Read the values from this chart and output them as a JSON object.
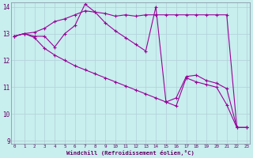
{
  "xlabel": "Windchill (Refroidissement éolien,°C)",
  "background_color": "#c8eeee",
  "grid_color": "#b0d0d8",
  "line_color": "#990099",
  "x_min": 0,
  "x_max": 23,
  "y_min": 9,
  "y_max": 14,
  "x_ticks": [
    0,
    1,
    2,
    3,
    4,
    5,
    6,
    7,
    8,
    9,
    10,
    11,
    12,
    13,
    14,
    15,
    16,
    17,
    18,
    19,
    20,
    21,
    22,
    23
  ],
  "y_ticks": [
    9,
    10,
    11,
    12,
    13,
    14
  ],
  "series1": [
    [
      0,
      12.9
    ],
    [
      1,
      13.0
    ],
    [
      2,
      13.05
    ],
    [
      3,
      13.2
    ],
    [
      4,
      13.45
    ],
    [
      5,
      13.55
    ],
    [
      6,
      13.7
    ],
    [
      7,
      13.85
    ],
    [
      8,
      13.8
    ],
    [
      9,
      13.75
    ],
    [
      10,
      13.65
    ],
    [
      11,
      13.7
    ],
    [
      12,
      13.65
    ],
    [
      13,
      13.7
    ],
    [
      14,
      13.7
    ],
    [
      15,
      13.7
    ],
    [
      16,
      13.7
    ],
    [
      17,
      13.7
    ],
    [
      18,
      13.7
    ],
    [
      19,
      13.7
    ],
    [
      20,
      13.7
    ],
    [
      21,
      13.7
    ],
    [
      22,
      9.5
    ],
    [
      23,
      9.5
    ]
  ],
  "series2": [
    [
      0,
      12.9
    ],
    [
      1,
      13.0
    ],
    [
      2,
      12.9
    ],
    [
      3,
      12.9
    ],
    [
      4,
      12.5
    ],
    [
      5,
      13.0
    ],
    [
      6,
      13.3
    ],
    [
      7,
      14.1
    ],
    [
      8,
      13.8
    ],
    [
      9,
      13.4
    ],
    [
      10,
      13.1
    ],
    [
      11,
      12.85
    ],
    [
      12,
      12.6
    ],
    [
      13,
      12.35
    ],
    [
      14,
      14.0
    ],
    [
      15,
      10.45
    ],
    [
      16,
      10.6
    ],
    [
      17,
      11.4
    ],
    [
      18,
      11.45
    ],
    [
      19,
      11.25
    ],
    [
      20,
      11.15
    ],
    [
      21,
      10.95
    ],
    [
      22,
      9.5
    ],
    [
      23,
      9.5
    ]
  ],
  "series3": [
    [
      0,
      12.9
    ],
    [
      1,
      13.0
    ],
    [
      2,
      12.85
    ],
    [
      3,
      12.45
    ],
    [
      4,
      12.2
    ],
    [
      5,
      12.0
    ],
    [
      6,
      11.8
    ],
    [
      7,
      11.65
    ],
    [
      8,
      11.5
    ],
    [
      9,
      11.35
    ],
    [
      10,
      11.2
    ],
    [
      11,
      11.05
    ],
    [
      12,
      10.9
    ],
    [
      13,
      10.75
    ],
    [
      14,
      10.6
    ],
    [
      15,
      10.45
    ],
    [
      16,
      10.3
    ],
    [
      17,
      11.35
    ],
    [
      18,
      11.2
    ],
    [
      19,
      11.1
    ],
    [
      20,
      11.0
    ],
    [
      21,
      10.35
    ],
    [
      22,
      9.5
    ],
    [
      23,
      9.5
    ]
  ]
}
